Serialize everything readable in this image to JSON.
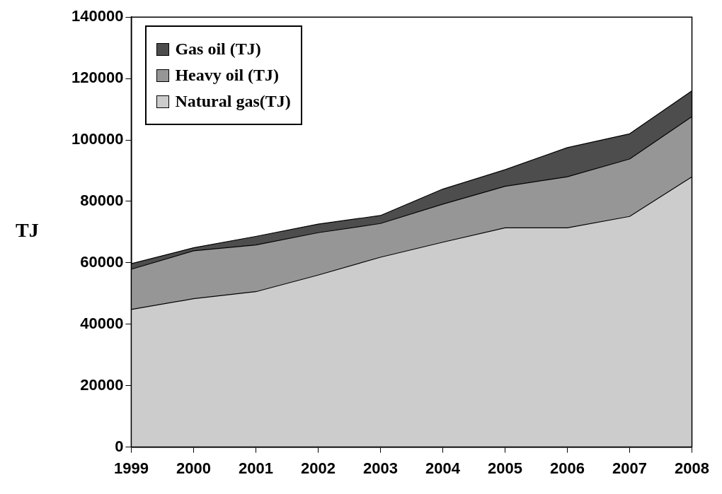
{
  "chart_data": {
    "type": "area",
    "stacked": true,
    "ylabel": "TJ",
    "categories": [
      "1999",
      "2000",
      "2001",
      "2002",
      "2003",
      "2004",
      "2005",
      "2006",
      "2007",
      "2008"
    ],
    "series": [
      {
        "name": "Natural gas(TJ)",
        "color": "#cccccc",
        "values": [
          44800,
          48300,
          50600,
          56000,
          61800,
          66700,
          71400,
          71400,
          75100,
          88000
        ]
      },
      {
        "name": "Heavy oil (TJ)",
        "color": "#969696",
        "values": [
          13100,
          15600,
          15200,
          13800,
          11000,
          12400,
          13500,
          16600,
          18700,
          19600
        ]
      },
      {
        "name": "Gas oil (TJ)",
        "color": "#4d4d4d",
        "values": [
          1800,
          1000,
          2800,
          2800,
          2600,
          4900,
          5400,
          9500,
          8200,
          8400
        ]
      }
    ],
    "ylim": [
      0,
      140000
    ],
    "yticks": [
      0,
      20000,
      40000,
      60000,
      80000,
      100000,
      120000,
      140000
    ],
    "grid": false,
    "legend": "top left"
  }
}
